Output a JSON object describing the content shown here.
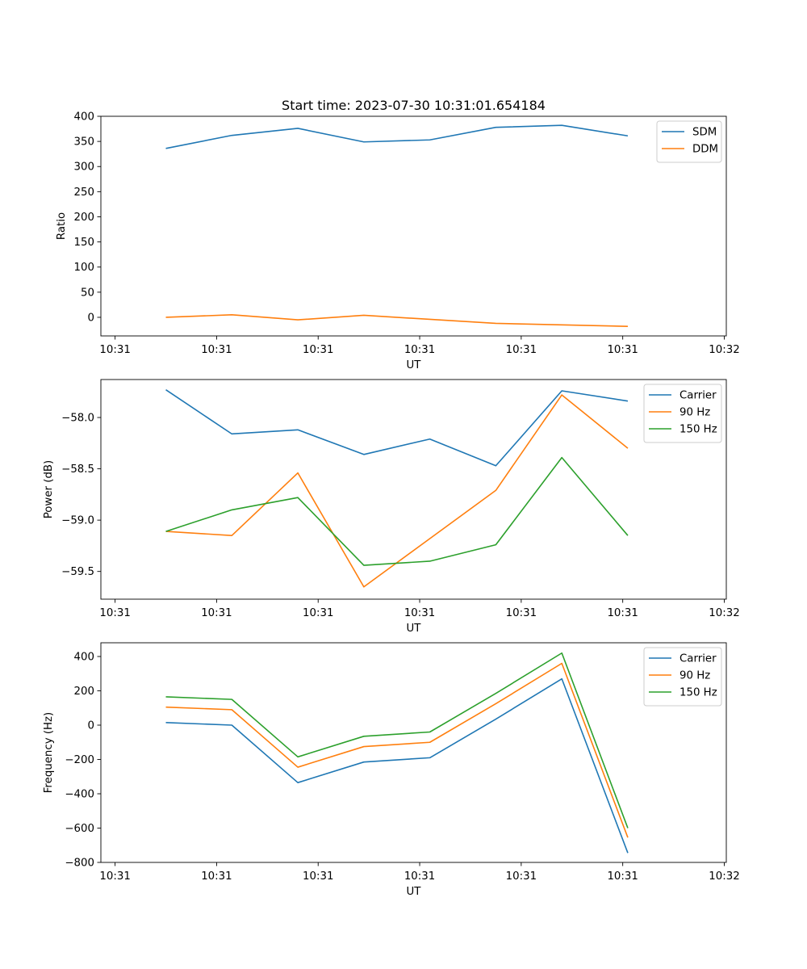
{
  "chart_data": [
    {
      "type": "line",
      "title": "Start time: 2023-07-30 10:31:01.654184",
      "xlabel": "UT",
      "ylabel": "Ratio",
      "x_tick_labels": [
        "10:31",
        "10:31",
        "10:31",
        "10:31",
        "10:31",
        "10:31",
        "10:32"
      ],
      "x_ticks_s": [
        0,
        10,
        20,
        30,
        40,
        50,
        60
      ],
      "xlim_s": [
        -1.4,
        60.2
      ],
      "ylim": [
        -37,
        400
      ],
      "y_ticks": [
        0,
        50,
        100,
        150,
        200,
        250,
        300,
        350,
        400
      ],
      "legend_loc": "upper right",
      "x_s": [
        5,
        11.5,
        18,
        24.5,
        31,
        37.5,
        44,
        50.5
      ],
      "series": [
        {
          "name": "SDM",
          "color": "#1f77b4",
          "values": [
            336,
            362,
            376,
            349,
            353,
            378,
            382,
            361
          ]
        },
        {
          "name": "DDM",
          "color": "#ff7f0e",
          "values": [
            0,
            5,
            -5,
            4,
            -4,
            -12,
            -15,
            -18
          ]
        }
      ]
    },
    {
      "type": "line",
      "title": "",
      "xlabel": "UT",
      "ylabel": "Power (dB)",
      "x_tick_labels": [
        "10:31",
        "10:31",
        "10:31",
        "10:31",
        "10:31",
        "10:31",
        "10:32"
      ],
      "x_ticks_s": [
        0,
        10,
        20,
        30,
        40,
        50,
        60
      ],
      "xlim_s": [
        -1.4,
        60.2
      ],
      "ylim": [
        -59.77,
        -57.63
      ],
      "y_ticks": [
        -58.0,
        -58.5,
        -59.0,
        -59.5
      ],
      "y_tick_labels": [
        "−58.0",
        "−58.5",
        "−59.0",
        "−59.5"
      ],
      "legend_loc": "upper right",
      "x_s": [
        5,
        11.5,
        18,
        24.5,
        31,
        37.5,
        44,
        50.5
      ],
      "series": [
        {
          "name": "Carrier",
          "color": "#1f77b4",
          "values": [
            -57.73,
            -58.16,
            -58.12,
            -58.36,
            -58.21,
            -58.47,
            -57.74,
            -57.84
          ]
        },
        {
          "name": "90 Hz",
          "color": "#ff7f0e",
          "values": [
            -59.11,
            -59.15,
            -58.54,
            -59.65,
            -59.18,
            -58.71,
            -57.78,
            -58.3
          ]
        },
        {
          "name": "150 Hz",
          "color": "#2ca02c",
          "values": [
            -59.11,
            -58.9,
            -58.78,
            -59.44,
            -59.4,
            -59.24,
            -58.39,
            -59.15
          ]
        }
      ]
    },
    {
      "type": "line",
      "title": "",
      "xlabel": "UT",
      "ylabel": "Frequency (Hz)",
      "x_tick_labels": [
        "10:31",
        "10:31",
        "10:31",
        "10:31",
        "10:31",
        "10:31",
        "10:32"
      ],
      "x_ticks_s": [
        0,
        10,
        20,
        30,
        40,
        50,
        60
      ],
      "xlim_s": [
        -1.4,
        60.2
      ],
      "ylim": [
        -800,
        480
      ],
      "y_ticks": [
        400,
        200,
        0,
        -200,
        -400,
        -600,
        -800
      ],
      "y_tick_labels": [
        "400",
        "200",
        "0",
        "−200",
        "−400",
        "−600",
        "−800"
      ],
      "legend_loc": "upper right",
      "x_s": [
        5,
        11.5,
        18,
        24.5,
        31,
        37.5,
        44,
        50.5
      ],
      "series": [
        {
          "name": "Carrier",
          "color": "#1f77b4",
          "values": [
            15,
            0,
            -335,
            -215,
            -190,
            35,
            270,
            -745
          ]
        },
        {
          "name": "90 Hz",
          "color": "#ff7f0e",
          "values": [
            105,
            90,
            -245,
            -125,
            -100,
            125,
            360,
            -655
          ]
        },
        {
          "name": "150 Hz",
          "color": "#2ca02c",
          "values": [
            165,
            150,
            -185,
            -65,
            -40,
            185,
            420,
            -600
          ]
        }
      ]
    }
  ]
}
